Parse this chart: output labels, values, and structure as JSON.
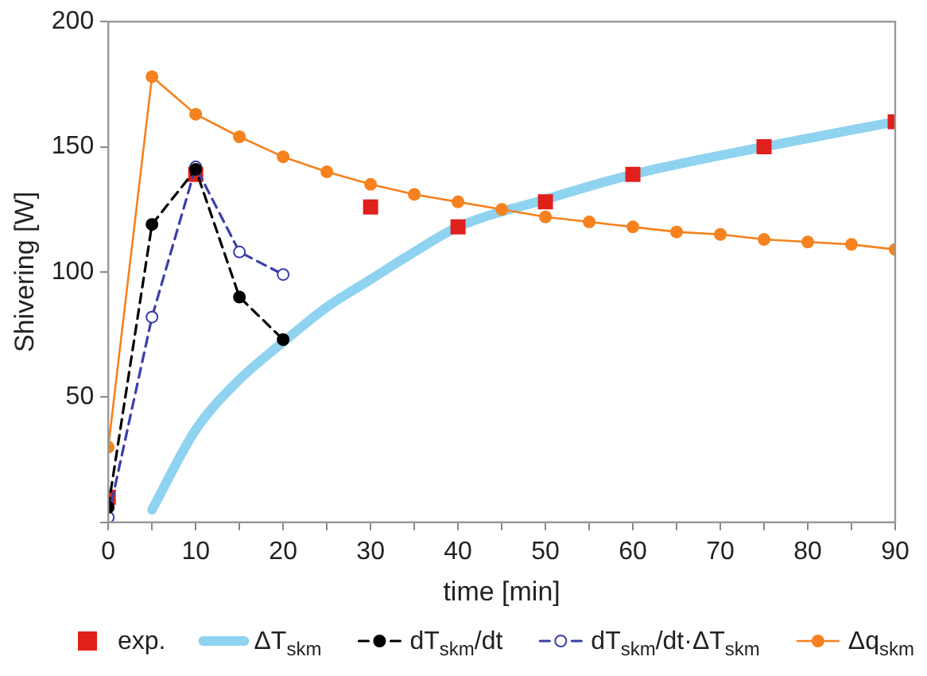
{
  "chart_data": {
    "type": "line",
    "xlabel": "time [min]",
    "ylabel": "Shivering [W]",
    "xlim": [
      0,
      90
    ],
    "ylim": [
      0,
      200
    ],
    "xticks": [
      0,
      {
        "value": 5,
        "label": null
      },
      10,
      {
        "value": 15,
        "label": null
      },
      20,
      {
        "value": 25,
        "label": null
      },
      30,
      {
        "value": 35,
        "label": null
      },
      40,
      {
        "value": 45,
        "label": null
      },
      50,
      {
        "value": 55,
        "label": null
      },
      60,
      {
        "value": 65,
        "label": null
      },
      70,
      {
        "value": 75,
        "label": null
      },
      80,
      {
        "value": 85,
        "label": null
      },
      90
    ],
    "yticks": [
      {
        "value": 0,
        "label": null
      },
      50,
      100,
      150,
      200
    ],
    "grid": false,
    "legend": "bottom",
    "series": [
      {
        "name": "exp.",
        "type": "scatter",
        "marker": "square",
        "color": "#e0201b",
        "x": [
          0,
          10,
          30,
          40,
          50,
          60,
          75,
          90
        ],
        "values": [
          10,
          139,
          126,
          118,
          128,
          139,
          150,
          160
        ]
      },
      {
        "name": "ΔT$_{skm}$",
        "type": "line",
        "marker": "none",
        "line_style": "solid",
        "color": "#8fd3f0",
        "x": [
          5,
          10,
          15,
          20,
          25,
          30,
          35,
          40,
          50,
          60,
          75,
          90
        ],
        "values": [
          5,
          37,
          57,
          72,
          86,
          97,
          108,
          118,
          129,
          139,
          150,
          160
        ]
      },
      {
        "name": "dT$_{skm}$/dt",
        "type": "line",
        "marker": "circle",
        "line_style": "dashed",
        "color": "#000000",
        "x": [
          0,
          5,
          10,
          15,
          20
        ],
        "values": [
          6,
          119,
          141,
          90,
          73
        ]
      },
      {
        "name": "dT$_{skm}$/dt·ΔT$_{skm}$",
        "type": "line",
        "marker": "circle",
        "line_style": "dashed",
        "color": "#3a3fa8",
        "x": [
          0,
          5,
          10,
          15,
          20
        ],
        "values": [
          2,
          82,
          142,
          108,
          99
        ]
      },
      {
        "name": "Δq$_{skm}$",
        "type": "line",
        "marker": "circle",
        "line_style": "solid",
        "color": "#f5821f",
        "x": [
          0,
          5,
          10,
          15,
          20,
          25,
          30,
          35,
          40,
          45,
          50,
          55,
          60,
          65,
          70,
          75,
          80,
          85,
          90
        ],
        "values": [
          30,
          178,
          163,
          154,
          146,
          140,
          135,
          131,
          128,
          125,
          122,
          120,
          118,
          116,
          115,
          113,
          112,
          111,
          109
        ]
      }
    ]
  }
}
